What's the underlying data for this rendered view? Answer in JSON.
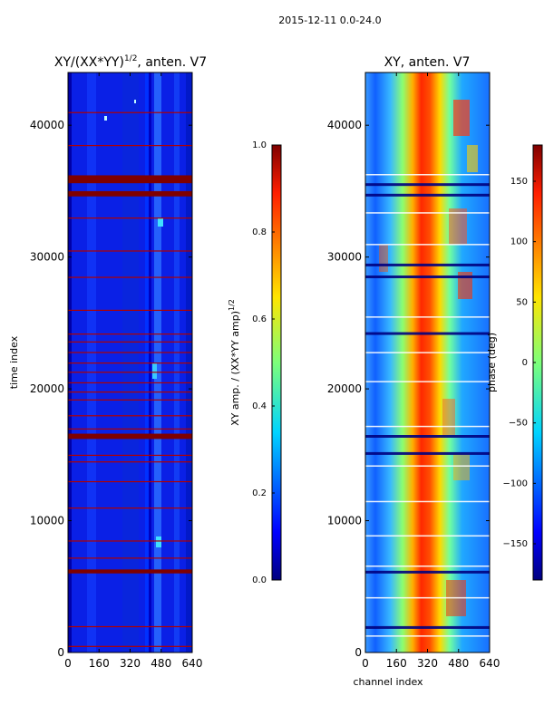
{
  "figure": {
    "title": "2015-12-11 0.0-24.0",
    "ylabel": "time index",
    "xlabel": "channel index"
  },
  "chart_data": [
    {
      "type": "heatmap",
      "title": "XY/(XX*YY)^{1/2}, anten. V7",
      "title_parts": {
        "pre": "XY/(XX*YY)",
        "sup": "1/2",
        "post": ", anten. V7"
      },
      "x_range": [
        0,
        640
      ],
      "y_range": [
        0,
        44000
      ],
      "x_ticks": [
        0,
        160,
        320,
        480,
        640
      ],
      "y_ticks": [
        0,
        10000,
        20000,
        30000,
        40000
      ],
      "colorbar": {
        "label": "XY amp. / (XX*YY amp)^{1/2}",
        "label_parts": {
          "pre": "XY amp. / (XX*YY amp)",
          "sup": "1/2"
        },
        "range": [
          0.0,
          1.0
        ],
        "ticks": [
          "0.0",
          "0.2",
          "0.4",
          "0.6",
          "0.8",
          "1.0"
        ],
        "tick_values": [
          0.0,
          0.2,
          0.4,
          0.6,
          0.8,
          1.0
        ]
      },
      "flagged_bands": [
        {
          "from": 35600,
          "to": 36200,
          "value": 1.0
        },
        {
          "from": 34600,
          "to": 35000,
          "value": 1.0
        },
        {
          "from": 16200,
          "to": 16600,
          "value": 1.0
        },
        {
          "from": 6000,
          "to": 6300,
          "value": 1.0
        }
      ],
      "flag_lines": [
        41000,
        38500,
        33000,
        30500,
        28500,
        26000,
        24200,
        23600,
        22800,
        22000,
        21300,
        20500,
        19800,
        19200,
        18000,
        17000,
        15000,
        14500,
        13000,
        11000,
        8500,
        7200,
        2000,
        500
      ]
    },
    {
      "type": "heatmap",
      "title": "XY, anten. V7",
      "x_range": [
        0,
        640
      ],
      "y_range": [
        0,
        44000
      ],
      "x_ticks": [
        0,
        160,
        320,
        480,
        640
      ],
      "y_ticks": [
        0,
        10000,
        20000,
        30000,
        40000
      ],
      "colorbar": {
        "label": "phase (deg)",
        "range": [
          -180,
          180
        ],
        "ticks": [
          "−150",
          "−100",
          "−50",
          "0",
          "50",
          "100",
          "150"
        ],
        "tick_values": [
          -150,
          -100,
          -50,
          0,
          50,
          100,
          150
        ]
      },
      "dark_bands": [
        35600,
        34800,
        29500,
        28600,
        24300,
        16500,
        15200,
        6200,
        2000
      ],
      "white_lines": [
        36300,
        33400,
        31000,
        25500,
        22800,
        20600,
        17200,
        14200,
        11500,
        8900,
        6600,
        4200,
        1300
      ]
    }
  ]
}
